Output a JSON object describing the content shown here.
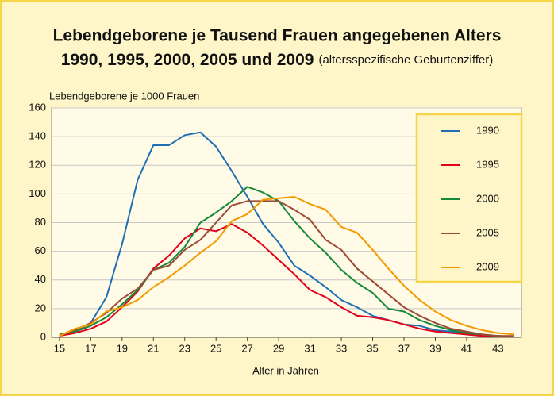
{
  "chart_data": {
    "type": "line",
    "title": "Lebendgeborene je Tausend Frauen angegebenen Alters",
    "subtitle": "1990, 1995, 2000, 2005 und 2009",
    "subtitle_note": "(altersspezifische Geburtenziffer)",
    "ylabel": "Lebendgeborene je 1000 Frauen",
    "xlabel": "Alter in Jahren",
    "x": [
      15,
      16,
      17,
      18,
      19,
      20,
      21,
      22,
      23,
      24,
      25,
      26,
      27,
      28,
      29,
      30,
      31,
      32,
      33,
      34,
      35,
      36,
      37,
      38,
      39,
      40,
      41,
      42,
      43,
      44
    ],
    "series": [
      {
        "name": "1990",
        "color": "#1f6fb4",
        "values": [
          1,
          4,
          10,
          28,
          65,
          110,
          134,
          134,
          141,
          143,
          133,
          116,
          98,
          79,
          66,
          50,
          43,
          35,
          26,
          21,
          15,
          12,
          9,
          8,
          5,
          4,
          2,
          1,
          1,
          0.5
        ]
      },
      {
        "name": "1995",
        "color": "#e2001a",
        "values": [
          1,
          3,
          6,
          11,
          21,
          32,
          48,
          57,
          69,
          76,
          74,
          79,
          73,
          64,
          54,
          44,
          33,
          28,
          21,
          15,
          14,
          12,
          9,
          6,
          4,
          3,
          2,
          1,
          1,
          0.5
        ]
      },
      {
        "name": "2000",
        "color": "#16883a",
        "values": [
          2,
          4,
          8,
          14,
          23,
          33,
          47,
          52,
          63,
          80,
          87,
          95,
          105,
          101,
          95,
          81,
          69,
          59,
          47,
          38,
          31,
          20,
          18,
          12,
          8,
          5,
          3,
          2,
          1,
          0.5
        ]
      },
      {
        "name": "2005",
        "color": "#9b4b38",
        "values": [
          1,
          5,
          10,
          17,
          27,
          34,
          47,
          50,
          61,
          68,
          80,
          92,
          95,
          95,
          95,
          89,
          82,
          68,
          61,
          48,
          39,
          30,
          21,
          15,
          10,
          6,
          4,
          2,
          1,
          1
        ]
      },
      {
        "name": "2009",
        "color": "#f29a00",
        "values": [
          1,
          6,
          9,
          18,
          21,
          26,
          35,
          42,
          50,
          59,
          67,
          81,
          86,
          96,
          97,
          98,
          93,
          89,
          77,
          73,
          61,
          48,
          36,
          26,
          18,
          12,
          8,
          5,
          3,
          2
        ]
      }
    ],
    "xlim": [
      14.5,
      44.5
    ],
    "xticks": [
      15,
      17,
      19,
      21,
      23,
      25,
      27,
      29,
      31,
      33,
      35,
      37,
      39,
      41,
      43
    ],
    "ylim": [
      0,
      160
    ],
    "yticks": [
      0,
      20,
      40,
      60,
      80,
      100,
      120,
      140,
      160
    ],
    "grid": true,
    "legend": "upper right"
  }
}
